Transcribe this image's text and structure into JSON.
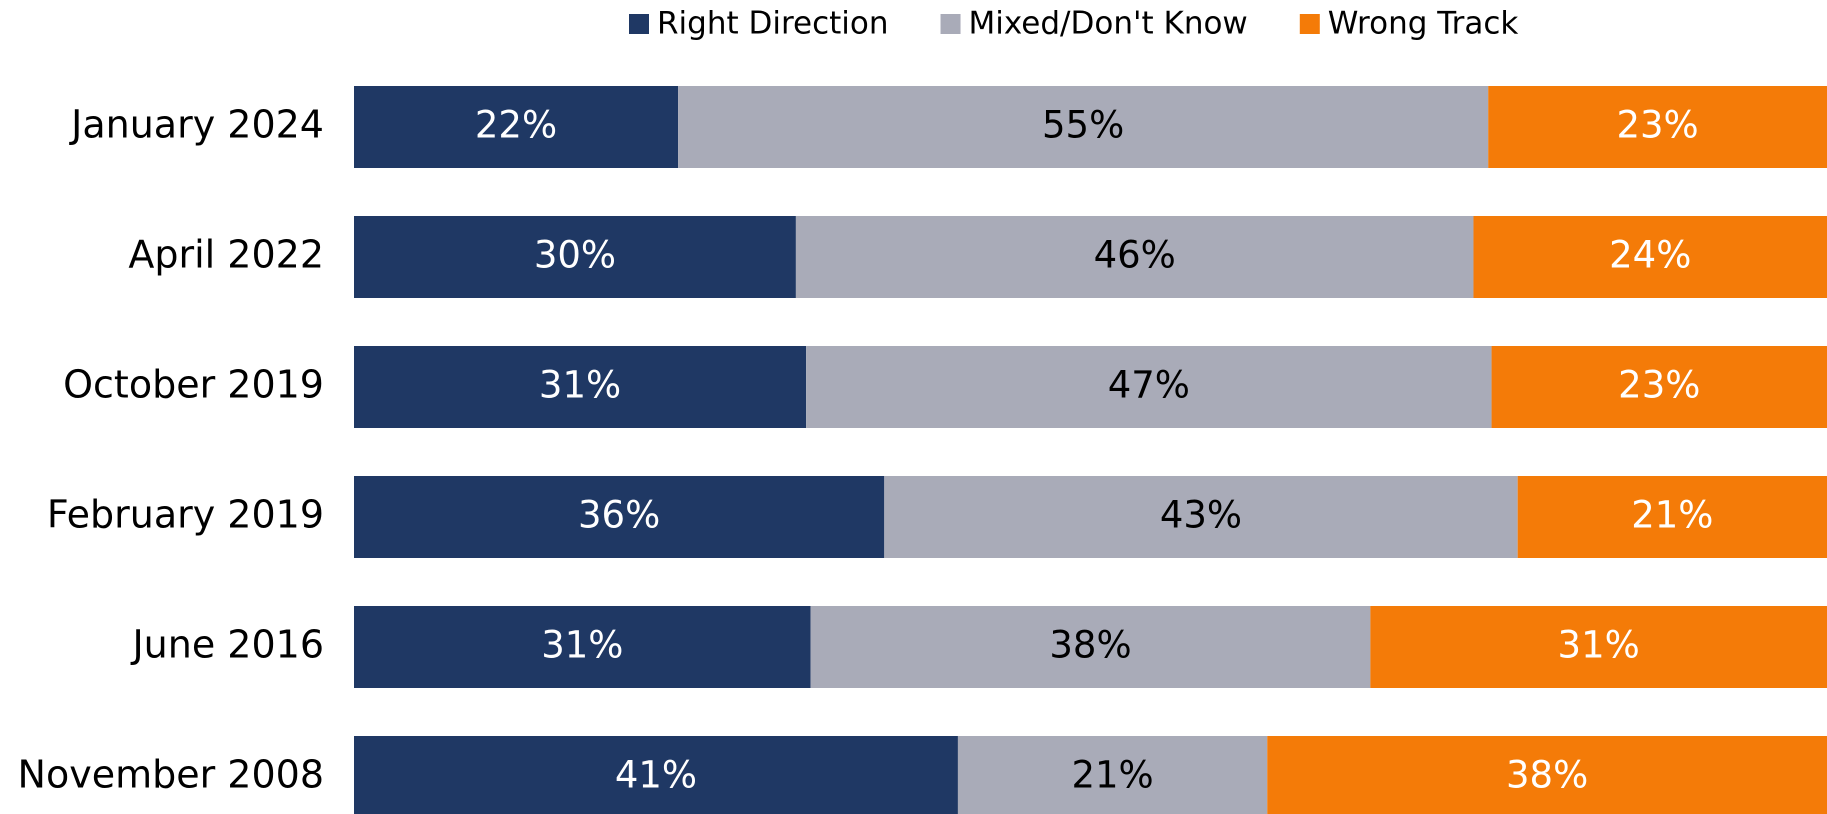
{
  "chart_data": {
    "type": "stacked-bar-horizontal",
    "categories": [
      "January 2024",
      "April 2022",
      "October 2019",
      "February 2019",
      "June 2016",
      "November 2008"
    ],
    "series": [
      {
        "name": "Right Direction",
        "color": "#1f3864",
        "values": [
          22,
          30,
          31,
          36,
          31,
          41
        ],
        "value_labels": [
          "22%",
          "30%",
          "31%",
          "36%",
          "31%",
          "41%"
        ]
      },
      {
        "name": "Mixed/Don't Know",
        "color": "#a9abb8",
        "values": [
          55,
          46,
          47,
          43,
          38,
          21
        ],
        "value_labels": [
          "55%",
          "46%",
          "47%",
          "43%",
          "38%",
          "21%"
        ]
      },
      {
        "name": "Wrong Track",
        "color": "#f47b08",
        "values": [
          23,
          24,
          23,
          21,
          31,
          38
        ],
        "value_labels": [
          "23%",
          "24%",
          "23%",
          "21%",
          "31%",
          "38%"
        ]
      }
    ],
    "legend": "top"
  }
}
